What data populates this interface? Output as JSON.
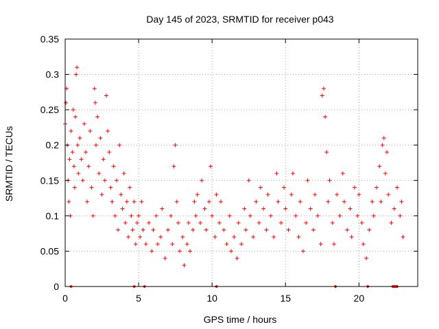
{
  "chart_data": {
    "type": "scatter",
    "title": "Day 145 of 2023, SRMTID for receiver p043",
    "xlabel": "GPS time / hours",
    "ylabel": "SRMTID / TECUs",
    "xlim": [
      0,
      24
    ],
    "ylim": [
      0,
      0.35
    ],
    "x_ticks": [
      0,
      5,
      10,
      15,
      20
    ],
    "x_tick_labels": [
      "0",
      "5",
      "10",
      "15",
      "20"
    ],
    "y_ticks": [
      0,
      0.05,
      0.1,
      0.15,
      0.2,
      0.25,
      0.3,
      0.35
    ],
    "y_tick_labels": [
      "0",
      "0.05",
      "0.1",
      "0.15",
      "0.2",
      "0.25",
      "0.3",
      "0.35"
    ],
    "grid": true,
    "marker": "+",
    "series_color": "#ff0000",
    "series": [
      {
        "name": "SRMTID",
        "points": [
          [
            0.0,
            0.23
          ],
          [
            0.05,
            0.26
          ],
          [
            0.1,
            0.28
          ],
          [
            0.15,
            0.2
          ],
          [
            0.2,
            0.15
          ],
          [
            0.25,
            0.12
          ],
          [
            0.3,
            0.18
          ],
          [
            0.35,
            0.1
          ],
          [
            0.4,
            0.22
          ],
          [
            0.5,
            0.19
          ],
          [
            0.55,
            0.25
          ],
          [
            0.6,
            0.17
          ],
          [
            0.65,
            0.14
          ],
          [
            0.7,
            0.24
          ],
          [
            0.75,
            0.3
          ],
          [
            0.8,
            0.31
          ],
          [
            0.85,
            0.2
          ],
          [
            0.9,
            0.16
          ],
          [
            1.0,
            0.21
          ],
          [
            1.1,
            0.18
          ],
          [
            1.2,
            0.15
          ],
          [
            1.3,
            0.23
          ],
          [
            1.4,
            0.19
          ],
          [
            1.5,
            0.12
          ],
          [
            1.6,
            0.17
          ],
          [
            1.7,
            0.22
          ],
          [
            1.8,
            0.14
          ],
          [
            1.9,
            0.1
          ],
          [
            2.0,
            0.28
          ],
          [
            2.05,
            0.26
          ],
          [
            2.1,
            0.2
          ],
          [
            2.2,
            0.24
          ],
          [
            2.3,
            0.16
          ],
          [
            2.4,
            0.21
          ],
          [
            2.5,
            0.13
          ],
          [
            2.6,
            0.18
          ],
          [
            2.7,
            0.15
          ],
          [
            2.8,
            0.27
          ],
          [
            2.9,
            0.22
          ],
          [
            3.0,
            0.19
          ],
          [
            3.1,
            0.14
          ],
          [
            3.2,
            0.12
          ],
          [
            3.3,
            0.17
          ],
          [
            3.4,
            0.1
          ],
          [
            3.5,
            0.15
          ],
          [
            3.6,
            0.08
          ],
          [
            3.7,
            0.2
          ],
          [
            3.8,
            0.13
          ],
          [
            3.9,
            0.11
          ],
          [
            4.0,
            0.16
          ],
          [
            4.1,
            0.09
          ],
          [
            4.2,
            0.12
          ],
          [
            4.3,
            0.07
          ],
          [
            4.4,
            0.14
          ],
          [
            4.5,
            0.1
          ],
          [
            4.6,
            0.08
          ],
          [
            4.7,
            0.12
          ],
          [
            4.8,
            0.06
          ],
          [
            4.9,
            0.09
          ],
          [
            5.0,
            0.1
          ],
          [
            5.1,
            0.07
          ],
          [
            5.2,
            0.12
          ],
          [
            5.3,
            0.08
          ],
          [
            5.5,
            0.06
          ],
          [
            5.7,
            0.09
          ],
          [
            5.9,
            0.05
          ],
          [
            6.0,
            0.08
          ],
          [
            6.2,
            0.1
          ],
          [
            6.3,
            0.06
          ],
          [
            6.5,
            0.07
          ],
          [
            6.6,
            0.11
          ],
          [
            6.8,
            0.04
          ],
          [
            7.0,
            0.08
          ],
          [
            7.2,
            0.1
          ],
          [
            7.3,
            0.06
          ],
          [
            7.4,
            0.17
          ],
          [
            7.5,
            0.2
          ],
          [
            7.6,
            0.12
          ],
          [
            7.7,
            0.09
          ],
          [
            7.8,
            0.05
          ],
          [
            8.0,
            0.07
          ],
          [
            8.1,
            0.03
          ],
          [
            8.3,
            0.06
          ],
          [
            8.4,
            0.09
          ],
          [
            8.5,
            0.05
          ],
          [
            8.7,
            0.08
          ],
          [
            8.8,
            0.12
          ],
          [
            8.9,
            0.1
          ],
          [
            9.0,
            0.13
          ],
          [
            9.2,
            0.09
          ],
          [
            9.3,
            0.15
          ],
          [
            9.5,
            0.11
          ],
          [
            9.6,
            0.08
          ],
          [
            9.8,
            0.12
          ],
          [
            9.9,
            0.17
          ],
          [
            10.0,
            0.1
          ],
          [
            10.2,
            0.07
          ],
          [
            10.3,
            0.13
          ],
          [
            10.5,
            0.09
          ],
          [
            10.6,
            0.12
          ],
          [
            10.8,
            0.08
          ],
          [
            11.0,
            0.06
          ],
          [
            11.2,
            0.1
          ],
          [
            11.3,
            0.05
          ],
          [
            11.5,
            0.07
          ],
          [
            11.7,
            0.04
          ],
          [
            11.8,
            0.09
          ],
          [
            12.0,
            0.06
          ],
          [
            12.2,
            0.11
          ],
          [
            12.3,
            0.08
          ],
          [
            12.5,
            0.15
          ],
          [
            12.6,
            0.1
          ],
          [
            12.8,
            0.07
          ],
          [
            13.0,
            0.12
          ],
          [
            13.2,
            0.09
          ],
          [
            13.3,
            0.14
          ],
          [
            13.5,
            0.11
          ],
          [
            13.7,
            0.08
          ],
          [
            13.8,
            0.13
          ],
          [
            14.0,
            0.1
          ],
          [
            14.2,
            0.07
          ],
          [
            14.4,
            0.16
          ],
          [
            14.5,
            0.12
          ],
          [
            14.7,
            0.09
          ],
          [
            14.9,
            0.14
          ],
          [
            15.0,
            0.11
          ],
          [
            15.2,
            0.08
          ],
          [
            15.4,
            0.13
          ],
          [
            15.5,
            0.16
          ],
          [
            15.7,
            0.1
          ],
          [
            15.9,
            0.07
          ],
          [
            16.0,
            0.12
          ],
          [
            16.2,
            0.05
          ],
          [
            16.4,
            0.09
          ],
          [
            16.5,
            0.15
          ],
          [
            16.7,
            0.11
          ],
          [
            16.9,
            0.08
          ],
          [
            17.0,
            0.13
          ],
          [
            17.2,
            0.1
          ],
          [
            17.4,
            0.06
          ],
          [
            17.5,
            0.27
          ],
          [
            17.6,
            0.28
          ],
          [
            17.7,
            0.24
          ],
          [
            17.8,
            0.19
          ],
          [
            17.9,
            0.12
          ],
          [
            18.0,
            0.15
          ],
          [
            18.2,
            0.09
          ],
          [
            18.3,
            0.06
          ],
          [
            18.5,
            0.13
          ],
          [
            18.7,
            0.1
          ],
          [
            18.9,
            0.16
          ],
          [
            19.0,
            0.12
          ],
          [
            19.2,
            0.08
          ],
          [
            19.4,
            0.11
          ],
          [
            19.5,
            0.07
          ],
          [
            19.7,
            0.14
          ],
          [
            19.9,
            0.1
          ],
          [
            20.0,
            0.13
          ],
          [
            20.2,
            0.09
          ],
          [
            20.3,
            0.06
          ],
          [
            20.5,
            0.04
          ],
          [
            20.7,
            0.08
          ],
          [
            20.9,
            0.12
          ],
          [
            21.0,
            0.1
          ],
          [
            21.2,
            0.14
          ],
          [
            21.4,
            0.17
          ],
          [
            21.5,
            0.12
          ],
          [
            21.6,
            0.2
          ],
          [
            21.7,
            0.21
          ],
          [
            21.8,
            0.16
          ],
          [
            21.9,
            0.19
          ],
          [
            22.0,
            0.13
          ],
          [
            22.2,
            0.09
          ],
          [
            22.4,
            0.11
          ],
          [
            22.6,
            0.14
          ],
          [
            22.8,
            0.1
          ],
          [
            22.9,
            0.12
          ],
          [
            23.0,
            0.07
          ]
        ]
      }
    ],
    "zero_line_markers_x": [
      0.4,
      4.7,
      5.4,
      10.3,
      18.4,
      20.6,
      22.3,
      22.4,
      22.5,
      22.6
    ]
  }
}
